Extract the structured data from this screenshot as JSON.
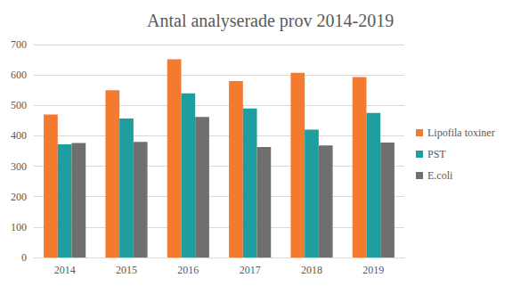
{
  "chart_data": {
    "type": "bar",
    "title": "Antal analyserade prov 2014-2019",
    "categories": [
      "2014",
      "2015",
      "2016",
      "2017",
      "2018",
      "2019"
    ],
    "series": [
      {
        "name": "Lipofila toxiner",
        "color": "#f47a30",
        "values": [
          470,
          550,
          652,
          580,
          607,
          593
        ]
      },
      {
        "name": "PST",
        "color": "#1f9e9f",
        "values": [
          372,
          457,
          540,
          490,
          420,
          475
        ]
      },
      {
        "name": "E.coli",
        "color": "#6f6f6f",
        "values": [
          376,
          380,
          462,
          363,
          368,
          378
        ]
      }
    ],
    "ylim": [
      0,
      700
    ],
    "yticks": [
      0,
      100,
      200,
      300,
      400,
      500,
      600,
      700
    ],
    "grid": true,
    "legend": "right"
  }
}
